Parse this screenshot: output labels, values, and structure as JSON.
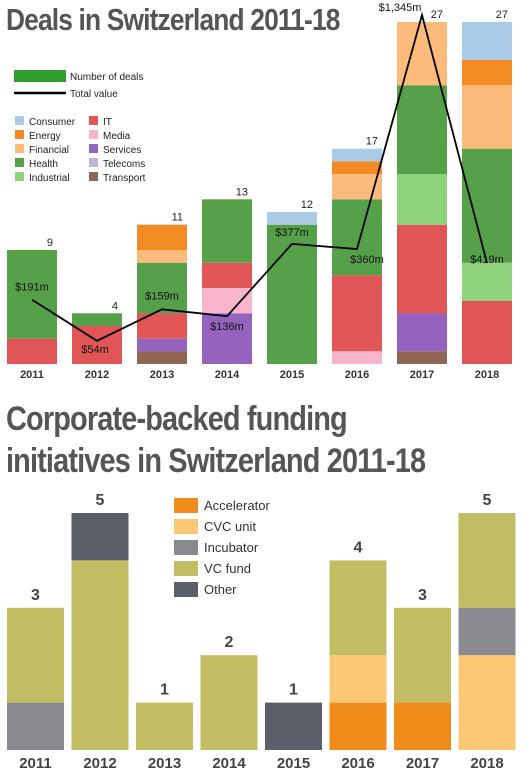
{
  "chart_data": [
    {
      "type": "bar",
      "title": "Deals in Switzerland 2011-18",
      "categories": [
        "2011",
        "2012",
        "2013",
        "2014",
        "2015",
        "2016",
        "2017",
        "2018"
      ],
      "ylim": [
        0,
        27
      ],
      "legend": {
        "placement": "top-left",
        "count_label": "Number of deals",
        "line_label": "Total value"
      },
      "series": [
        {
          "name": "Consumer",
          "color": "#a9cbe6",
          "values": [
            0,
            0,
            0,
            0,
            1,
            1,
            0,
            3
          ]
        },
        {
          "name": "Energy",
          "color": "#f28b24",
          "values": [
            0,
            0,
            2,
            0,
            0,
            1,
            0,
            2
          ]
        },
        {
          "name": "Financial",
          "color": "#fcbb7b",
          "values": [
            0,
            0,
            1,
            0,
            0,
            2,
            5,
            5
          ]
        },
        {
          "name": "Health",
          "color": "#56a04a",
          "values": [
            7,
            1,
            4,
            5,
            11,
            6,
            7,
            9
          ]
        },
        {
          "name": "Industrial",
          "color": "#8ed37c",
          "values": [
            0,
            0,
            0,
            0,
            0,
            0,
            4,
            3
          ]
        },
        {
          "name": "IT",
          "color": "#e05555",
          "values": [
            2,
            3,
            2,
            2,
            0,
            6,
            7,
            5
          ]
        },
        {
          "name": "Media",
          "color": "#f8b4cc",
          "values": [
            0,
            0,
            0,
            2,
            0,
            1,
            0,
            0
          ]
        },
        {
          "name": "Services",
          "color": "#9363bd",
          "values": [
            0,
            0,
            1,
            4,
            0,
            0,
            3,
            0
          ]
        },
        {
          "name": "Telecoms",
          "color": "#c5b3d6",
          "values": [
            0,
            0,
            0,
            0,
            0,
            0,
            0,
            0
          ]
        },
        {
          "name": "Transport",
          "color": "#8d6754",
          "values": [
            0,
            0,
            1,
            0,
            0,
            0,
            1,
            0
          ]
        }
      ],
      "totals": [
        9,
        4,
        11,
        13,
        12,
        17,
        27,
        27
      ],
      "line": {
        "name": "Total value",
        "values": [
          191,
          54,
          159,
          136,
          377,
          360,
          1345,
          419
        ],
        "labels": [
          "$191m",
          "$54m",
          "$159m",
          "$136m",
          "$377m",
          "$360m",
          "$1,345m",
          "$419m"
        ]
      }
    },
    {
      "type": "bar",
      "title": "Corporate-backed funding initiatives in Switzerland 2011-18",
      "categories": [
        "2011",
        "2012",
        "2013",
        "2014",
        "2015",
        "2016",
        "2017",
        "2018"
      ],
      "ylim": [
        0,
        5
      ],
      "legend": {
        "placement": "top-center"
      },
      "series": [
        {
          "name": "Accelerator",
          "color": "#f08c1a",
          "values": [
            0,
            0,
            0,
            0,
            0,
            1,
            1,
            0
          ]
        },
        {
          "name": "CVC unit",
          "color": "#fcc875",
          "values": [
            0,
            0,
            0,
            0,
            0,
            1,
            0,
            2
          ]
        },
        {
          "name": "Incubator",
          "color": "#888a90",
          "values": [
            1,
            0,
            0,
            0,
            0,
            0,
            0,
            1
          ]
        },
        {
          "name": "VC fund",
          "color": "#c2bd63",
          "values": [
            2,
            4,
            1,
            2,
            0,
            2,
            2,
            2
          ]
        },
        {
          "name": "Other",
          "color": "#5a5f69",
          "values": [
            0,
            1,
            0,
            0,
            1,
            0,
            0,
            0
          ]
        }
      ],
      "totals": [
        3,
        5,
        1,
        2,
        1,
        4,
        3,
        5
      ]
    }
  ]
}
